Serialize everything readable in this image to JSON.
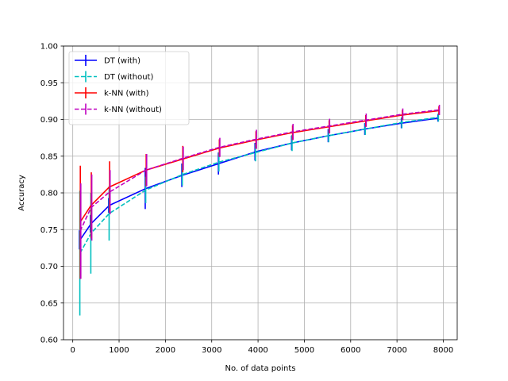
{
  "chart_data": {
    "type": "line",
    "xlabel": "No. of data points",
    "ylabel": "Accuracy",
    "xlim": [
      -200,
      8300
    ],
    "ylim": [
      0.6,
      1.0
    ],
    "xticks": [
      0,
      1000,
      2000,
      3000,
      4000,
      5000,
      6000,
      7000,
      8000
    ],
    "yticks": [
      0.6,
      0.65,
      0.7,
      0.75,
      0.8,
      0.85,
      0.9,
      0.95,
      1.0
    ],
    "xtick_labels": [
      "0",
      "1000",
      "2000",
      "3000",
      "4000",
      "5000",
      "6000",
      "7000",
      "8000"
    ],
    "ytick_labels": [
      "0.60",
      "0.65",
      "0.70",
      "0.75",
      "0.80",
      "0.85",
      "0.90",
      "0.95",
      "1.00"
    ],
    "grid": true,
    "legend_position": "top-left",
    "x": [
      158,
      395,
      790,
      1580,
      2370,
      3160,
      3950,
      4740,
      5530,
      6320,
      7110,
      7900
    ],
    "series": [
      {
        "name": "DT (with)",
        "color": "#0000ff",
        "dashed": false,
        "values": [
          0.736,
          0.758,
          0.783,
          0.806,
          0.824,
          0.84,
          0.856,
          0.868,
          0.878,
          0.887,
          0.895,
          0.902
        ],
        "errors": [
          0.013,
          0.012,
          0.01,
          0.028,
          0.016,
          0.015,
          0.012,
          0.01,
          0.009,
          0.008,
          0.007,
          0.005
        ]
      },
      {
        "name": "DT (without)",
        "color": "#00bfbf",
        "dashed": true,
        "values": [
          0.718,
          0.745,
          0.772,
          0.804,
          0.825,
          0.842,
          0.855,
          0.868,
          0.878,
          0.887,
          0.896,
          0.903
        ],
        "errors": [
          0.085,
          0.055,
          0.037,
          0.018,
          0.015,
          0.013,
          0.012,
          0.011,
          0.009,
          0.008,
          0.008,
          0.006
        ]
      },
      {
        "name": "k-NN (with)",
        "color": "#ff0000",
        "dashed": false,
        "values": [
          0.76,
          0.783,
          0.808,
          0.831,
          0.846,
          0.861,
          0.872,
          0.882,
          0.89,
          0.898,
          0.906,
          0.912
        ],
        "errors": [
          0.077,
          0.045,
          0.035,
          0.022,
          0.018,
          0.012,
          0.012,
          0.01,
          0.009,
          0.008,
          0.007,
          0.006
        ]
      },
      {
        "name": "k-NN (without)",
        "color": "#bf00bf",
        "dashed": true,
        "values": [
          0.748,
          0.78,
          0.801,
          0.831,
          0.847,
          0.862,
          0.873,
          0.883,
          0.891,
          0.899,
          0.907,
          0.913
        ],
        "errors": [
          0.065,
          0.045,
          0.03,
          0.022,
          0.016,
          0.013,
          0.013,
          0.011,
          0.01,
          0.009,
          0.008,
          0.007
        ]
      }
    ]
  }
}
